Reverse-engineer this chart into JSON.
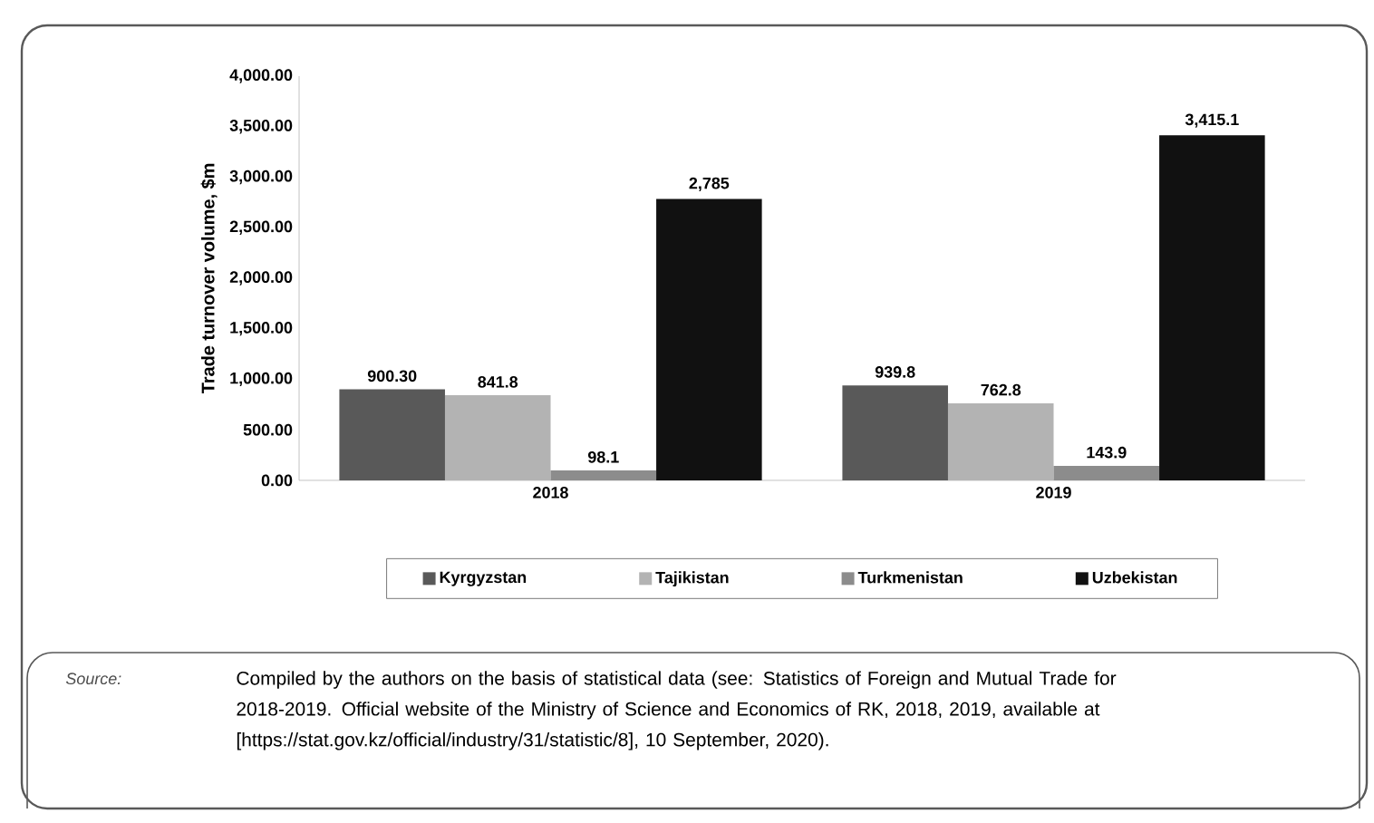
{
  "chart_data": {
    "type": "bar",
    "ylabel": "Trade turnover volume, $m",
    "categories": [
      "2018",
      "2019"
    ],
    "series": [
      {
        "name": "Kyrgyzstan",
        "color": "#595959",
        "values": [
          900.3,
          939.8
        ],
        "value_labels": [
          "900.30",
          "939.8"
        ]
      },
      {
        "name": "Tajikistan",
        "color": "#b3b3b3",
        "values": [
          841.8,
          762.8
        ],
        "value_labels": [
          "841.8",
          "762.8"
        ]
      },
      {
        "name": "Turkmenistan",
        "color": "#8c8c8c",
        "values": [
          98.1,
          143.9
        ],
        "value_labels": [
          "98.1",
          "143.9"
        ]
      },
      {
        "name": "Uzbekistan",
        "color": "#111111",
        "values": [
          2785,
          3415.1
        ],
        "value_labels": [
          "2,785",
          "3,415.1"
        ]
      }
    ],
    "ylim": [
      0,
      4000
    ],
    "yticks": [
      {
        "value": 0,
        "label": "0.00"
      },
      {
        "value": 500,
        "label": "500.00"
      },
      {
        "value": 1000,
        "label": "1,000.00"
      },
      {
        "value": 1500,
        "label": "1,500.00"
      },
      {
        "value": 2000,
        "label": "2,000.00"
      },
      {
        "value": 2500,
        "label": "2,500.00"
      },
      {
        "value": 3000,
        "label": "3,000.00"
      },
      {
        "value": 3500,
        "label": "3,500.00"
      },
      {
        "value": 4000,
        "label": "4,000.00"
      }
    ],
    "legend": "bottom",
    "annotations": [
      "Source:",
      "Compiled by the authors on the basis of statistical data (see: Statistics of Foreign and Mutual Trade for 2018-2019. Official website of the Ministry of Science and Economics of RK, 2018, 2019, available at [https://stat.gov.kz/official/industry/31/statistic/8], 10 September, 2020)."
    ]
  }
}
